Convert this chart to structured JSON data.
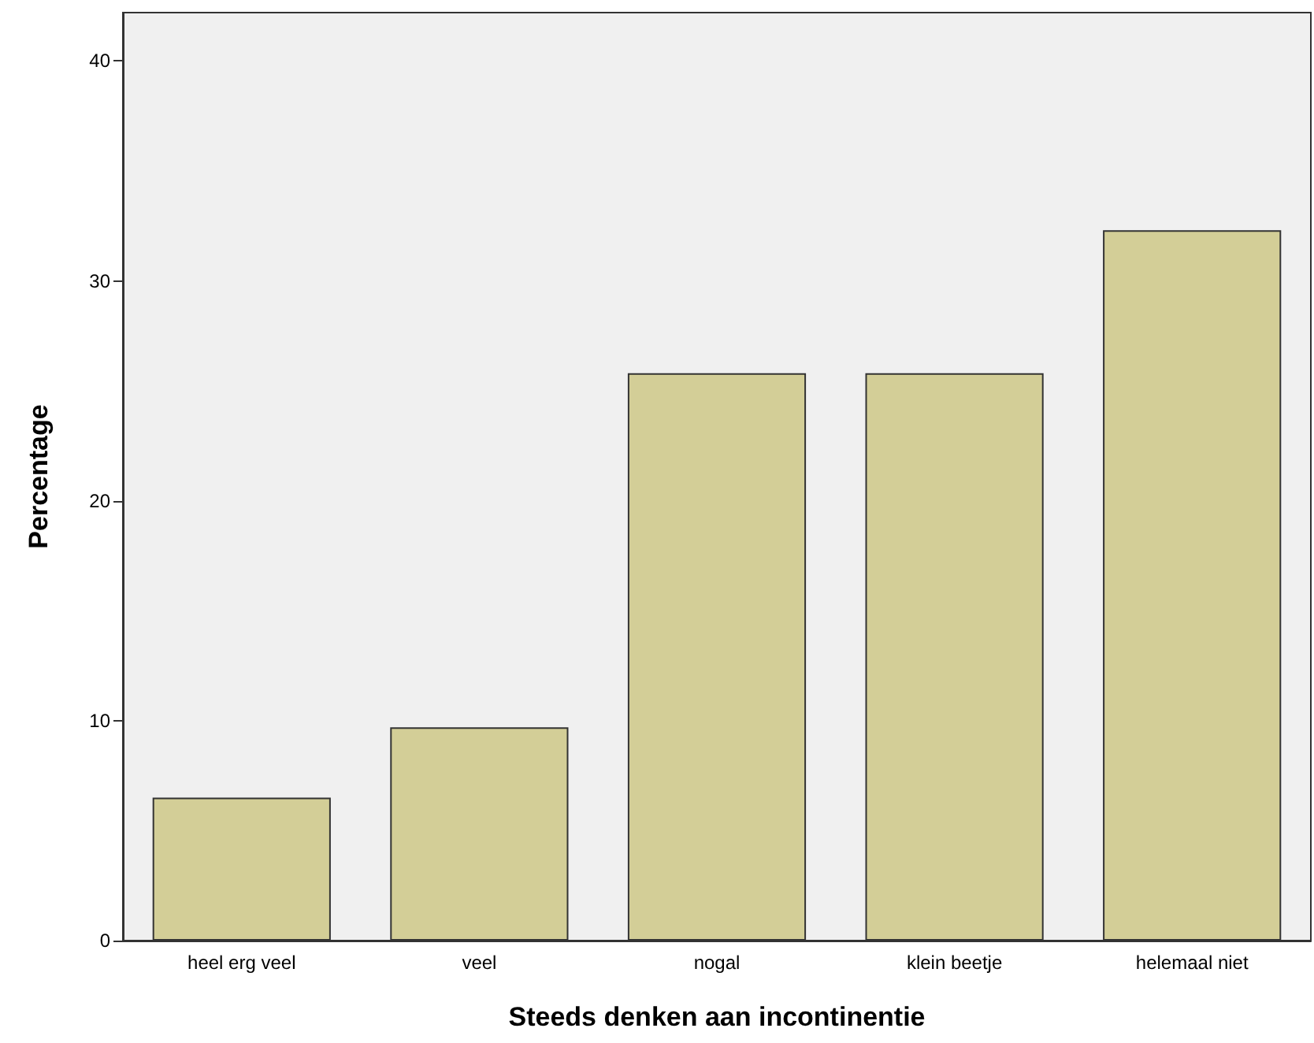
{
  "chart_data": {
    "type": "bar",
    "xlabel": "Steeds denken aan incontinentie",
    "ylabel": "Percentage",
    "categories": [
      "heel erg veel",
      "veel",
      "nogal",
      "klein beetje",
      "helemaal niet"
    ],
    "values": [
      6.5,
      9.7,
      25.8,
      25.8,
      32.3
    ],
    "color": "#d3ce97",
    "ylim": [
      0,
      42.2
    ],
    "yticks": [
      0,
      10,
      20,
      30,
      40
    ],
    "grid": false
  }
}
